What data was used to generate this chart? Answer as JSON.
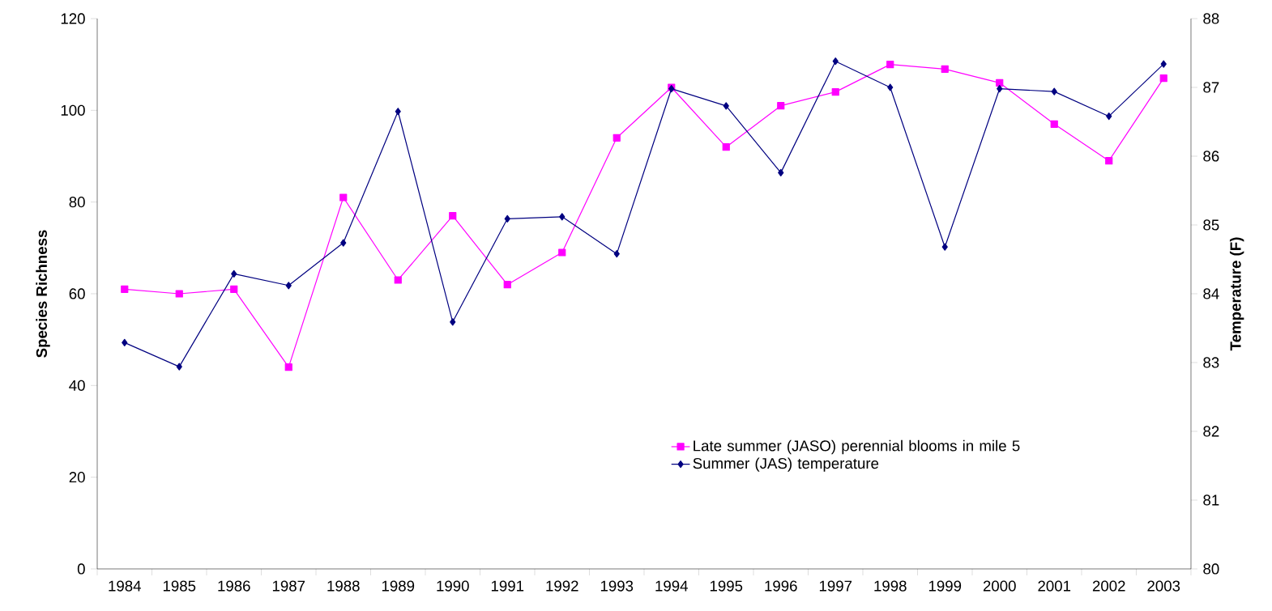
{
  "chart_data": {
    "type": "line",
    "ylabel": "Species Richness",
    "y2label": "Temperature (F)",
    "categories": [
      "1984",
      "1985",
      "1986",
      "1987",
      "1988",
      "1989",
      "1990",
      "1991",
      "1992",
      "1993",
      "1994",
      "1995",
      "1996",
      "1997",
      "1998",
      "1999",
      "2000",
      "2001",
      "2002",
      "2003"
    ],
    "series": [
      {
        "name": "Late summer (JASO) perennial blooms in mile 5",
        "color": "#ff00ff",
        "marker": "square",
        "values": [
          61,
          60,
          61,
          44,
          81,
          63,
          77,
          62,
          69,
          94,
          105,
          92,
          101,
          104,
          110,
          109,
          106,
          97,
          89,
          107
        ]
      },
      {
        "name": "Summer (JAS) temperature",
        "color": "#000080",
        "marker": "diamond",
        "axis": "y2",
        "values": [
          83.29,
          82.94,
          84.29,
          84.12,
          84.74,
          86.65,
          83.59,
          85.09,
          85.12,
          84.58,
          86.98,
          86.73,
          85.76,
          87.38,
          87.0,
          84.68,
          86.98,
          86.94,
          86.58,
          87.34
        ]
      }
    ],
    "ylim": [
      0,
      120
    ],
    "yticks": [
      0,
      20,
      40,
      60,
      80,
      100,
      120
    ],
    "y2lim": [
      80,
      88
    ],
    "y2ticks": [
      80,
      81,
      82,
      83,
      84,
      85,
      86,
      87,
      88
    ],
    "grid": false,
    "legend": "bottom right",
    "line_style": "solid"
  }
}
